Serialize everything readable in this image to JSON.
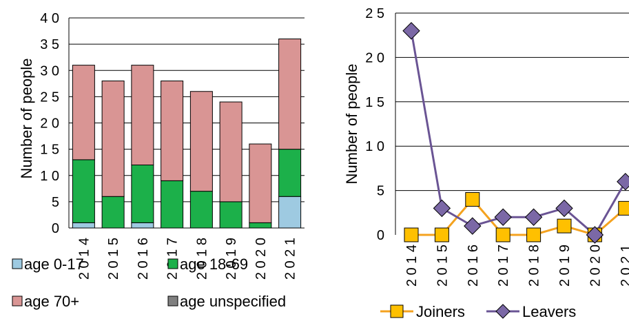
{
  "chart_data": [
    {
      "type": "bar",
      "stacked": true,
      "categories": [
        "2014",
        "2015",
        "2016",
        "2017",
        "2018",
        "2019",
        "2020",
        "2021"
      ],
      "series": [
        {
          "name": "age 0-17",
          "color": "#9ecae1",
          "values": [
            1,
            0,
            1,
            0,
            0,
            0,
            0,
            6
          ]
        },
        {
          "name": "age 18-69",
          "color": "#1cb04a",
          "values": [
            12,
            6,
            11,
            9,
            7,
            5,
            1,
            9
          ]
        },
        {
          "name": "age 70+",
          "color": "#d99594",
          "values": [
            18,
            22,
            19,
            19,
            19,
            19,
            15,
            21
          ]
        },
        {
          "name": "age unspecified",
          "color": "#808080",
          "values": [
            0,
            0,
            0,
            0,
            0,
            0,
            0,
            0
          ]
        }
      ],
      "ylabel": "Number of people",
      "ylim": [
        0,
        40
      ],
      "yticks": [
        0,
        5,
        10,
        15,
        20,
        25,
        30,
        35,
        40
      ],
      "ytick_labels": [
        "0",
        "5",
        "1 0",
        "1 5",
        "2 0",
        "2 5",
        "3 0",
        "3 5",
        "4 0"
      ],
      "xtick_labels": [
        "2 0 1 4",
        "2 0 1 5",
        "2 0 1 6",
        "2 0 1 7",
        "2 0 1 8",
        "2 0 1 9",
        "2 0 2 0",
        "2 0 2 1"
      ],
      "grid": true,
      "legend": "bottom"
    },
    {
      "type": "line",
      "categories": [
        "2014",
        "2015",
        "2016",
        "2017",
        "2018",
        "2019",
        "2020",
        "2021"
      ],
      "series": [
        {
          "name": "Joiners",
          "color": "#f4a21f",
          "marker": "square",
          "marker_fill": "#ffc000",
          "values": [
            0,
            0,
            4,
            0,
            0,
            1,
            0,
            3
          ]
        },
        {
          "name": "Leavers",
          "color": "#6a5494",
          "marker": "diamond",
          "marker_fill": "#7b68a6",
          "values": [
            23,
            3,
            1,
            2,
            2,
            3,
            0,
            6
          ]
        }
      ],
      "ylabel": "Number of people",
      "ylim": [
        0,
        25
      ],
      "yticks": [
        0,
        5,
        10,
        15,
        20,
        25
      ],
      "ytick_labels": [
        "0",
        "5",
        "1 0",
        "1 5",
        "2 0",
        "2 5"
      ],
      "xtick_labels": [
        "2 0 1 4",
        "2 0 1 5",
        "2 0 1 6",
        "2 0 1 7",
        "2 0 1 8",
        "2 0 1 9",
        "2 0 2 0",
        "2 0 2 1"
      ],
      "grid": true,
      "legend": "bottom"
    }
  ]
}
